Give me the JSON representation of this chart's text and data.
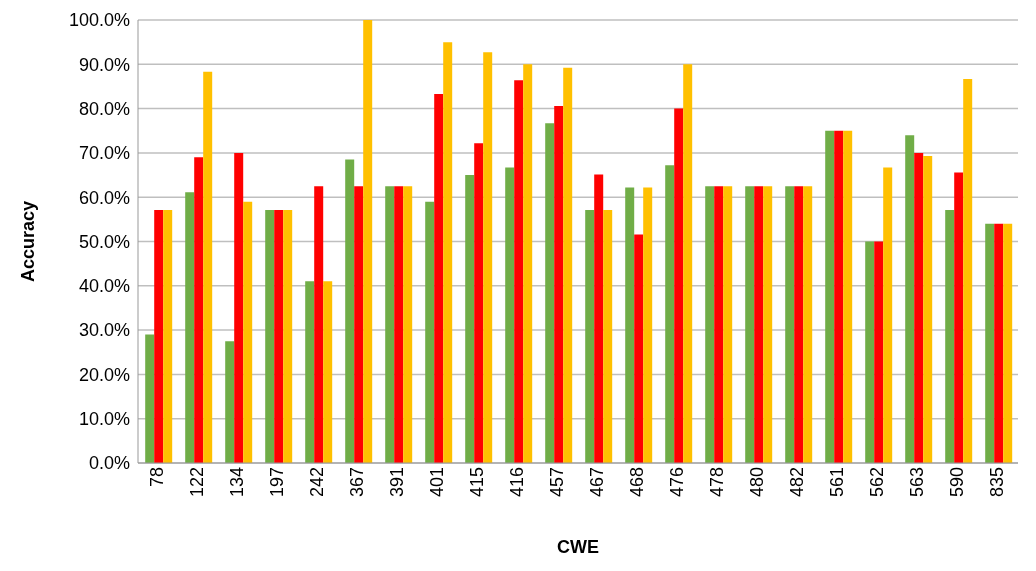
{
  "chart_data": {
    "type": "bar",
    "xlabel": "CWE",
    "ylabel": "Accuracy",
    "categories": [
      "78",
      "122",
      "134",
      "197",
      "242",
      "367",
      "391",
      "401",
      "415",
      "416",
      "457",
      "467",
      "468",
      "476",
      "478",
      "480",
      "482",
      "561",
      "562",
      "563",
      "590",
      "835"
    ],
    "series": [
      {
        "color": "#70ad47",
        "values": [
          29.0,
          61.1,
          27.5,
          57.1,
          41.0,
          68.5,
          62.5,
          59.0,
          65.0,
          66.7,
          76.7,
          57.1,
          62.2,
          67.2,
          62.5,
          62.5,
          62.5,
          75.0,
          50.0,
          74.0,
          57.1,
          54.0
        ]
      },
      {
        "color": "#ff0000",
        "values": [
          57.1,
          69.0,
          70.0,
          57.1,
          62.5,
          62.5,
          62.5,
          83.3,
          72.2,
          86.4,
          80.6,
          65.1,
          51.6,
          80.0,
          62.5,
          62.5,
          62.5,
          75.0,
          50.0,
          70.0,
          65.6,
          54.0
        ]
      },
      {
        "color": "#ffc000",
        "values": [
          57.1,
          88.3,
          59.0,
          57.1,
          41.0,
          100.0,
          62.5,
          95.0,
          92.7,
          90.0,
          89.2,
          57.1,
          62.2,
          90.0,
          62.5,
          62.5,
          62.5,
          75.0,
          66.7,
          69.3,
          86.7,
          54.0
        ]
      }
    ],
    "ylim": [
      0,
      100
    ],
    "yticks": [
      {
        "value": 0,
        "label": "0.0%"
      },
      {
        "value": 10,
        "label": "10.0%"
      },
      {
        "value": 20,
        "label": "20.0%"
      },
      {
        "value": 30,
        "label": "30.0%"
      },
      {
        "value": 40,
        "label": "40.0%"
      },
      {
        "value": 50,
        "label": "50.0%"
      },
      {
        "value": 60,
        "label": "60.0%"
      },
      {
        "value": 70,
        "label": "70.0%"
      },
      {
        "value": 80,
        "label": "80.0%"
      },
      {
        "value": 90,
        "label": "90.0%"
      },
      {
        "value": 100,
        "label": "100.0%"
      }
    ],
    "grid": "y"
  }
}
